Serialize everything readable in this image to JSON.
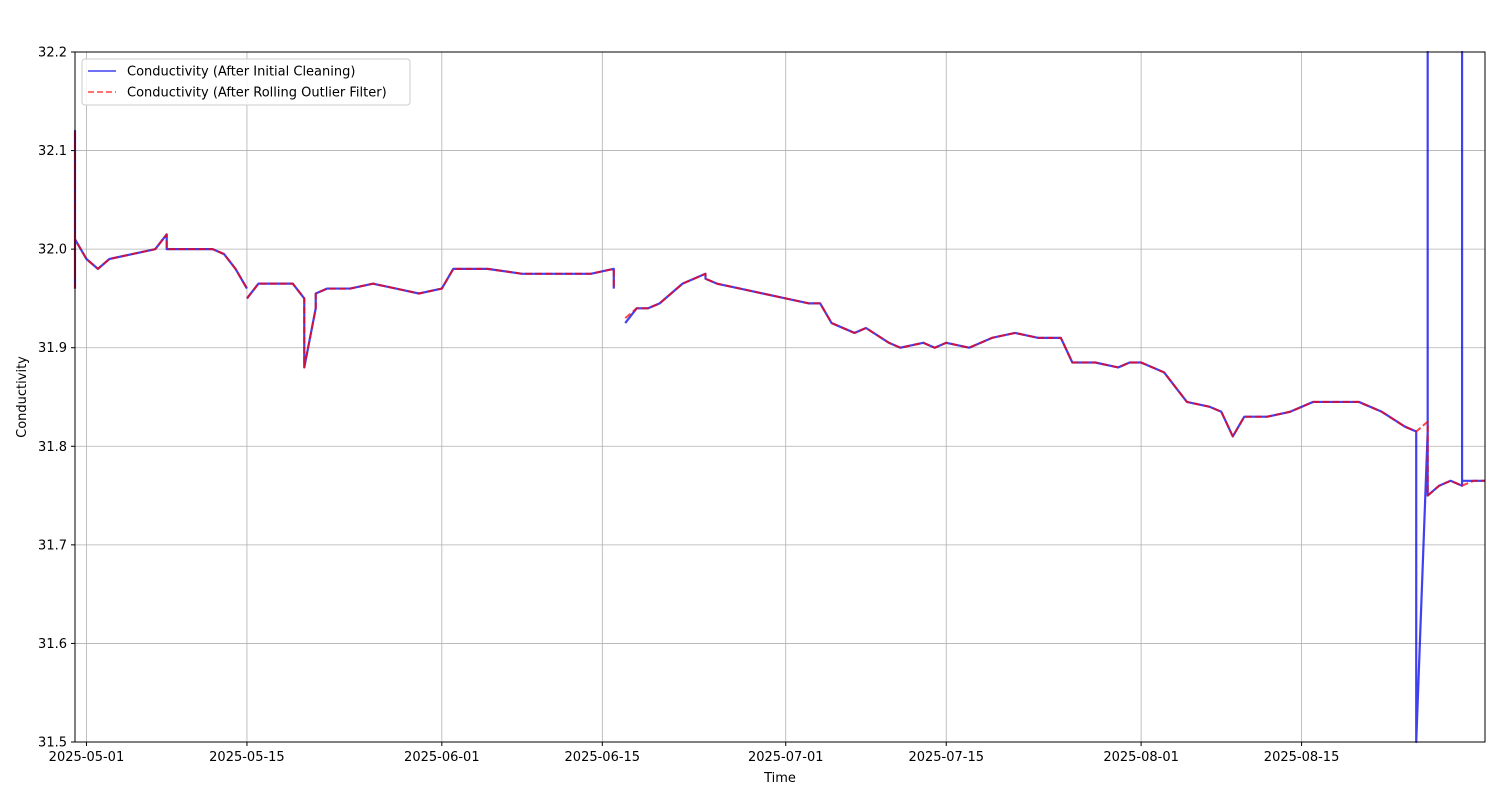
{
  "chart_data": {
    "type": "line",
    "title": "",
    "xlabel": "Time",
    "ylabel": "Conductivity",
    "x_type": "date",
    "xlim": [
      "2025-04-30",
      "2025-08-31"
    ],
    "ylim": [
      31.5,
      32.2
    ],
    "x_ticks": [
      "2025-05-01",
      "2025-05-15",
      "2025-06-01",
      "2025-06-15",
      "2025-07-01",
      "2025-07-15",
      "2025-08-01",
      "2025-08-15"
    ],
    "y_ticks": [
      31.5,
      31.6,
      31.7,
      31.8,
      31.9,
      32.0,
      32.1,
      32.2
    ],
    "y_tick_labels": [
      "31.5",
      "31.6",
      "31.7",
      "31.8",
      "31.9",
      "32.0",
      "32.1",
      "32.2"
    ],
    "grid": true,
    "legend_position": "top-left",
    "series": [
      {
        "name": "Conductivity (After Initial Cleaning)",
        "color": "#0000ee",
        "line_style": "solid",
        "x": [
          "2025-04-30",
          "2025-04-30",
          "2025-04-30",
          "2025-04-30",
          "2025-05-01",
          "2025-05-02",
          "2025-05-03",
          "2025-05-05",
          "2025-05-07",
          "2025-05-08",
          "2025-05-08",
          "2025-05-09",
          "2025-05-11",
          "2025-05-12",
          "2025-05-13",
          "2025-05-14",
          "2025-05-15",
          null,
          "2025-05-15",
          "2025-05-16",
          "2025-05-18",
          "2025-05-19",
          "2025-05-20",
          "2025-05-20",
          "2025-05-21",
          "2025-05-21",
          "2025-05-22",
          "2025-05-24",
          "2025-05-26",
          "2025-05-28",
          "2025-05-30",
          "2025-06-01",
          "2025-06-02",
          "2025-06-05",
          "2025-06-08",
          "2025-06-11",
          "2025-06-14",
          "2025-06-16",
          "2025-06-16",
          null,
          "2025-06-17",
          "2025-06-18",
          "2025-06-19",
          "2025-06-20",
          "2025-06-22",
          "2025-06-24",
          "2025-06-24",
          "2025-06-25",
          "2025-06-27",
          "2025-06-29",
          "2025-07-01",
          "2025-07-03",
          "2025-07-04",
          "2025-07-05",
          "2025-07-07",
          "2025-07-08",
          "2025-07-10",
          "2025-07-11",
          "2025-07-13",
          "2025-07-14",
          "2025-07-15",
          "2025-07-17",
          "2025-07-19",
          "2025-07-21",
          "2025-07-23",
          "2025-07-25",
          "2025-07-26",
          "2025-07-28",
          "2025-07-30",
          "2025-07-31",
          "2025-08-01",
          "2025-08-03",
          "2025-08-04",
          "2025-08-05",
          "2025-08-07",
          "2025-08-08",
          "2025-08-09",
          "2025-08-10",
          "2025-08-12",
          "2025-08-14",
          "2025-08-16",
          "2025-08-18",
          "2025-08-20",
          "2025-08-22",
          "2025-08-24",
          "2025-08-25",
          "2025-08-25",
          "2025-08-26",
          "2025-08-26",
          "2025-08-26",
          "2025-08-26",
          "2025-08-27",
          "2025-08-28",
          "2025-08-29",
          "2025-08-29",
          "2025-08-29",
          "2025-08-30",
          "2025-08-31"
        ],
        "y": [
          31.96,
          32.12,
          31.97,
          32.01,
          31.99,
          31.98,
          31.99,
          31.995,
          32.0,
          32.015,
          32.0,
          32.0,
          32.0,
          32.0,
          31.995,
          31.98,
          31.96,
          null,
          31.95,
          31.965,
          31.965,
          31.965,
          31.95,
          31.88,
          31.94,
          31.955,
          31.96,
          31.96,
          31.965,
          31.96,
          31.955,
          31.96,
          31.98,
          31.98,
          31.975,
          31.975,
          31.975,
          31.98,
          31.96,
          null,
          31.925,
          31.94,
          31.94,
          31.945,
          31.965,
          31.975,
          31.97,
          31.965,
          31.96,
          31.955,
          31.95,
          31.945,
          31.945,
          31.925,
          31.915,
          31.92,
          31.905,
          31.9,
          31.905,
          31.9,
          31.905,
          31.9,
          31.91,
          31.915,
          31.91,
          31.91,
          31.885,
          31.885,
          31.88,
          31.885,
          31.885,
          31.875,
          31.86,
          31.845,
          31.84,
          31.835,
          31.81,
          31.83,
          31.83,
          31.835,
          31.845,
          31.845,
          31.845,
          31.835,
          31.82,
          31.815,
          31.5,
          31.815,
          31.825,
          32.2,
          31.75,
          31.76,
          31.765,
          31.76,
          32.2,
          31.765,
          31.765,
          31.765
        ]
      },
      {
        "name": "Conductivity (After Rolling Outlier Filter)",
        "color": "#ff0000",
        "line_style": "dashed",
        "x": [
          "2025-04-30",
          "2025-04-30",
          "2025-04-30",
          "2025-04-30",
          "2025-05-01",
          "2025-05-02",
          "2025-05-03",
          "2025-05-05",
          "2025-05-07",
          "2025-05-08",
          "2025-05-08",
          "2025-05-09",
          "2025-05-11",
          "2025-05-12",
          "2025-05-13",
          "2025-05-14",
          "2025-05-15",
          null,
          "2025-05-15",
          "2025-05-16",
          "2025-05-18",
          "2025-05-19",
          "2025-05-20",
          "2025-05-20",
          "2025-05-21",
          "2025-05-21",
          "2025-05-22",
          "2025-05-24",
          "2025-05-26",
          "2025-05-28",
          "2025-05-30",
          "2025-06-01",
          "2025-06-02",
          "2025-06-05",
          "2025-06-08",
          "2025-06-11",
          "2025-06-14",
          "2025-06-16",
          "2025-06-16",
          null,
          "2025-06-17",
          "2025-06-18",
          "2025-06-19",
          "2025-06-20",
          "2025-06-22",
          "2025-06-24",
          "2025-06-24",
          "2025-06-25",
          "2025-06-27",
          "2025-06-29",
          "2025-07-01",
          "2025-07-03",
          "2025-07-04",
          "2025-07-05",
          "2025-07-07",
          "2025-07-08",
          "2025-07-10",
          "2025-07-11",
          "2025-07-13",
          "2025-07-14",
          "2025-07-15",
          "2025-07-17",
          "2025-07-19",
          "2025-07-21",
          "2025-07-23",
          "2025-07-25",
          "2025-07-26",
          "2025-07-28",
          "2025-07-30",
          "2025-07-31",
          "2025-08-01",
          "2025-08-03",
          "2025-08-04",
          "2025-08-05",
          "2025-08-07",
          "2025-08-08",
          "2025-08-09",
          "2025-08-10",
          "2025-08-12",
          "2025-08-14",
          "2025-08-16",
          "2025-08-18",
          "2025-08-20",
          "2025-08-22",
          "2025-08-24",
          "2025-08-25",
          "2025-08-26",
          "2025-08-26",
          "2025-08-27",
          "2025-08-28",
          "2025-08-29",
          "2025-08-30",
          "2025-08-31"
        ],
        "y": [
          31.96,
          32.12,
          31.97,
          32.01,
          31.99,
          31.98,
          31.99,
          31.995,
          32.0,
          32.015,
          32.0,
          32.0,
          32.0,
          32.0,
          31.995,
          31.98,
          31.96,
          null,
          31.95,
          31.965,
          31.965,
          31.965,
          31.95,
          31.88,
          31.94,
          31.955,
          31.96,
          31.96,
          31.965,
          31.96,
          31.955,
          31.96,
          31.98,
          31.98,
          31.975,
          31.975,
          31.975,
          31.98,
          31.96,
          null,
          31.93,
          31.94,
          31.94,
          31.945,
          31.965,
          31.975,
          31.97,
          31.965,
          31.96,
          31.955,
          31.95,
          31.945,
          31.945,
          31.925,
          31.915,
          31.92,
          31.905,
          31.9,
          31.905,
          31.9,
          31.905,
          31.9,
          31.91,
          31.915,
          31.91,
          31.91,
          31.885,
          31.885,
          31.88,
          31.885,
          31.885,
          31.875,
          31.86,
          31.845,
          31.84,
          31.835,
          31.81,
          31.83,
          31.83,
          31.835,
          31.845,
          31.845,
          31.845,
          31.835,
          31.82,
          31.815,
          31.825,
          31.75,
          31.76,
          31.765,
          31.76,
          31.765,
          31.765
        ]
      }
    ]
  }
}
